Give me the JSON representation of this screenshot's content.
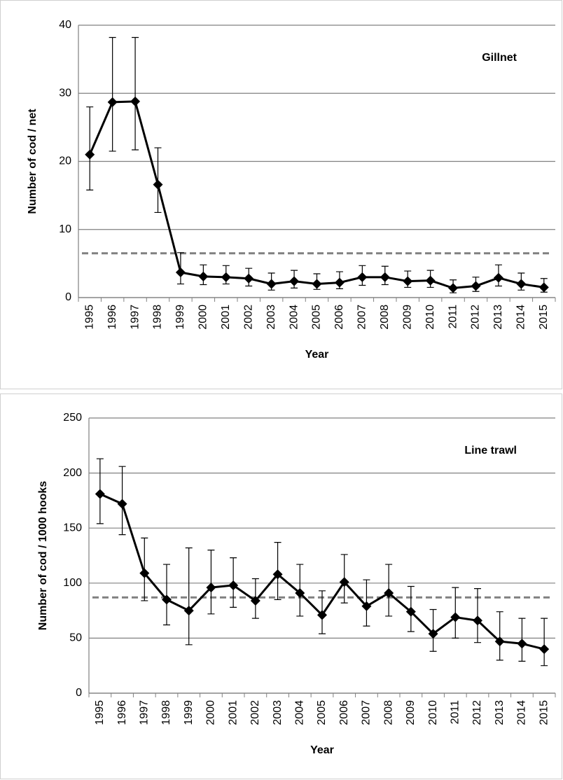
{
  "chart_data": [
    {
      "type": "line",
      "title": "Gillnet",
      "x_label": "Year",
      "y_label": "Number of cod / net",
      "categories": [
        "1995",
        "1996",
        "1997",
        "1998",
        "1999",
        "2000",
        "2001",
        "2002",
        "2003",
        "2004",
        "2005",
        "2006",
        "2007",
        "2008",
        "2009",
        "2010",
        "2011",
        "2012",
        "2013",
        "2014",
        "2015"
      ],
      "series": [
        {
          "color": "#000000",
          "values": [
            21,
            28.7,
            28.8,
            16.6,
            3.7,
            3.1,
            3.0,
            2.8,
            2.0,
            2.4,
            2.0,
            2.2,
            3.0,
            3.0,
            2.4,
            2.5,
            1.4,
            1.7,
            2.9,
            2.0,
            1.5
          ],
          "lower": [
            15.8,
            21.5,
            21.7,
            12.5,
            2.0,
            1.9,
            2.0,
            1.7,
            1.1,
            1.4,
            1.2,
            1.3,
            1.8,
            1.9,
            1.5,
            1.5,
            0.7,
            0.9,
            1.7,
            1.1,
            0.8
          ],
          "upper": [
            28,
            38.2,
            38.2,
            22,
            6.6,
            4.8,
            4.7,
            4.3,
            3.6,
            4.0,
            3.5,
            3.8,
            4.7,
            4.6,
            3.9,
            4.0,
            2.6,
            3.0,
            4.8,
            3.6,
            2.8
          ]
        }
      ],
      "reference_line": 6.5,
      "reference_color": "#808080",
      "ylim": [
        0,
        40
      ],
      "yticks": [
        0,
        10,
        20,
        30,
        40
      ],
      "grid": true
    },
    {
      "type": "line",
      "title": "Line trawl",
      "x_label": "Year",
      "y_label": "Number of cod / 1000 hooks",
      "categories": [
        "1995",
        "1996",
        "1997",
        "1998",
        "1999",
        "2000",
        "2001",
        "2002",
        "2003",
        "2004",
        "2005",
        "2006",
        "2007",
        "2008",
        "2009",
        "2010",
        "2011",
        "2012",
        "2013",
        "2014",
        "2015"
      ],
      "series": [
        {
          "color": "#000000",
          "values": [
            181,
            172,
            109,
            85,
            75,
            96,
            98,
            84,
            108,
            91,
            71,
            101,
            79,
            91,
            74,
            54,
            69,
            66,
            47,
            45,
            40
          ],
          "lower": [
            154,
            144,
            84,
            62,
            44,
            72,
            78,
            68,
            85,
            70,
            54,
            82,
            61,
            70,
            56,
            38,
            50,
            46,
            30,
            29,
            25
          ],
          "upper": [
            213,
            206,
            141,
            117,
            132,
            130,
            123,
            104,
            137,
            117,
            93,
            126,
            103,
            117,
            97,
            76,
            96,
            95,
            74,
            68,
            68
          ]
        }
      ],
      "reference_line": 87,
      "reference_color": "#808080",
      "ylim": [
        0,
        250
      ],
      "yticks": [
        0,
        50,
        100,
        150,
        200,
        250
      ],
      "grid": true
    }
  ]
}
